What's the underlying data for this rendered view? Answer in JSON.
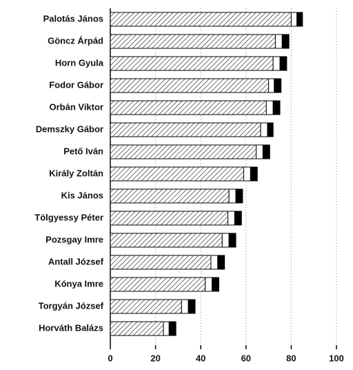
{
  "chart_data": {
    "type": "stacked-barh",
    "categories": [
      "Palotás János",
      "Göncz Árpád",
      "Horn Gyula",
      "Fodor Gábor",
      "Orbán Viktor",
      "Demszky Gábor",
      "Pető Iván",
      "Király Zoltán",
      "Kis János",
      "Tölgyessy Péter",
      "Pozsgay Imre",
      "Antall József",
      "Kónya Imre",
      "Torgyán József",
      "Horváth Balázs"
    ],
    "series": [
      {
        "pattern": "hatch",
        "values": [
          80,
          73,
          72,
          70,
          69,
          66.5,
          64.5,
          59,
          52.5,
          52,
          49.5,
          44.5,
          42,
          31.5,
          23.5
        ]
      },
      {
        "color": "#ffffff",
        "values": [
          2.5,
          3,
          3,
          2.5,
          3,
          3,
          3,
          3,
          3,
          3,
          3,
          3,
          3,
          3,
          2.5
        ]
      },
      {
        "color": "#000000",
        "values": [
          2.5,
          3,
          3,
          3,
          3,
          2.5,
          3,
          3,
          3,
          3,
          3,
          3,
          3,
          3,
          3
        ]
      }
    ],
    "xlim": [
      0,
      100
    ],
    "xticks": [
      0,
      20,
      40,
      60,
      80,
      100
    ],
    "grid": true
  }
}
